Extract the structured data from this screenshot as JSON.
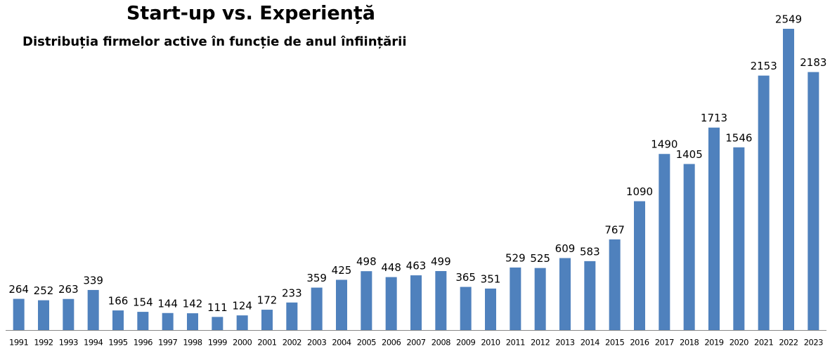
{
  "chart_data": {
    "type": "bar",
    "title": "Start-up  vs.  Experiență",
    "subtitle": "Distribuția firmelor active în funcție de anul înființării",
    "categories": [
      "1991",
      "1992",
      "1993",
      "1994",
      "1995",
      "1996",
      "1997",
      "1998",
      "1999",
      "2000",
      "2001",
      "2002",
      "2003",
      "2004",
      "2005",
      "2006",
      "2007",
      "2008",
      "2009",
      "2010",
      "2011",
      "2012",
      "2013",
      "2014",
      "2015",
      "2016",
      "2017",
      "2018",
      "2019",
      "2020",
      "2021",
      "2022",
      "2023"
    ],
    "values": [
      264,
      252,
      263,
      339,
      166,
      154,
      144,
      142,
      111,
      124,
      172,
      233,
      359,
      425,
      498,
      448,
      463,
      499,
      365,
      351,
      529,
      525,
      609,
      583,
      767,
      1090,
      1490,
      1405,
      1713,
      1546,
      2153,
      2549,
      2183
    ],
    "color": "#4f81bd"
  }
}
